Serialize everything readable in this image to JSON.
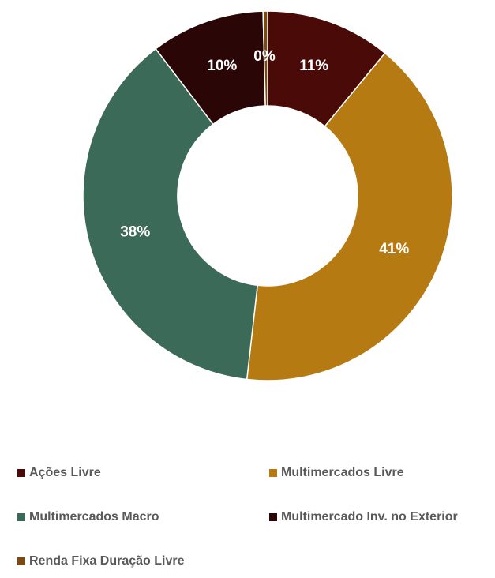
{
  "chart_data": {
    "type": "pie",
    "donut": true,
    "legend_position": "bottom",
    "slices": [
      {
        "label": "Ações Livre",
        "value": 11,
        "display": "11%",
        "color": "#4A0A08"
      },
      {
        "label": "Multimercados Livre",
        "value": 41,
        "display": "41%",
        "color": "#B57A12"
      },
      {
        "label": "Multimercados Macro",
        "value": 38,
        "display": "38%",
        "color": "#3C6A58"
      },
      {
        "label": "Multimercado Inv. no Exterior",
        "value": 10,
        "display": "10%",
        "color": "#2A0606"
      },
      {
        "label": "Renda Fixa Duração Livre",
        "value": 0.4,
        "display": "0%",
        "color": "#7A4A10"
      }
    ]
  }
}
